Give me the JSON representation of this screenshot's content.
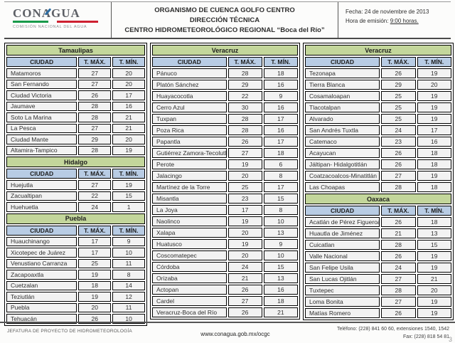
{
  "header": {
    "logo": {
      "title": "CONAGUA",
      "subtitle": "COMISIÓN NACIONAL DEL AGUA"
    },
    "title_lines": [
      "ORGANISMO DE CUENCA GOLFO CENTRO",
      "DIRECCIÓN TÉCNICA",
      "CENTRO HIDROMETEOROLÓGICO REGIONAL “Boca del Río”"
    ],
    "date_label": "Fecha: 24 de noviembre de 2013",
    "time_label": "Hora de emisión: ",
    "time_value": "9:00 horas."
  },
  "table_headers": {
    "city": "CIUDAD",
    "tmax": "T. MÁX.",
    "tmin": "T. MÍN."
  },
  "columns": [
    {
      "sections": [
        {
          "state": "Tamaulipas",
          "rows": [
            [
              "Matamoros",
              27,
              20
            ],
            [
              "San Fernando",
              27,
              20
            ],
            [
              "Ciudad Victoria",
              26,
              17
            ],
            [
              "Jaumave",
              28,
              16
            ],
            [
              "Soto La Marina",
              28,
              21
            ],
            [
              "La Pesca",
              27,
              21
            ],
            [
              "Ciudad Mante",
              29,
              20
            ],
            [
              "Altamira-Tampico",
              28,
              19
            ]
          ]
        },
        {
          "state": "Hidalgo",
          "rows": [
            [
              "Huejutla",
              27,
              19
            ],
            [
              "Zacualtipan",
              22,
              15
            ],
            [
              "Huehuetla",
              24,
              1
            ]
          ]
        },
        {
          "state": "Puebla",
          "rows": [
            [
              "Huauchinango",
              17,
              9
            ],
            [
              "Xicotepec de Juárez",
              17,
              10
            ],
            [
              "Venustiano Carranza",
              25,
              11
            ],
            [
              "Zacapoaxtla",
              19,
              8
            ],
            [
              "Cuetzalan",
              18,
              14
            ],
            [
              "Teziutlán",
              19,
              12
            ],
            [
              "Puebla",
              20,
              11
            ],
            [
              "Tehuacán",
              26,
              10
            ]
          ]
        }
      ]
    },
    {
      "sections": [
        {
          "state": "Veracruz",
          "rows": [
            [
              "Pánuco",
              28,
              18
            ],
            [
              "Platón Sánchez",
              29,
              16
            ],
            [
              "Huayacocotla",
              22,
              9
            ],
            [
              "Cerro Azul",
              30,
              16
            ],
            [
              "Tuxpan",
              28,
              17
            ],
            [
              "Poza Rica",
              28,
              16
            ],
            [
              "Papantla",
              26,
              17
            ],
            [
              "Gutiérrez Zamora-Tecolutla",
              27,
              18
            ],
            [
              "Perote",
              19,
              6
            ],
            [
              "Jalacingo",
              20,
              8
            ],
            [
              "Martínez de la Torre",
              25,
              17
            ],
            [
              "Misantla",
              23,
              15
            ],
            [
              "La Joya",
              17,
              8
            ],
            [
              "Naolinco",
              19,
              10
            ],
            [
              "Xalapa",
              20,
              13
            ],
            [
              "Huatusco",
              19,
              9
            ],
            [
              "Coscomatepec",
              20,
              10
            ],
            [
              "Córdoba",
              24,
              15
            ],
            [
              "Orizaba",
              21,
              13
            ],
            [
              "Actopan",
              26,
              16
            ],
            [
              "Cardel",
              27,
              18
            ],
            [
              "Veracruz-Boca del Río",
              26,
              21
            ]
          ]
        }
      ]
    },
    {
      "sections": [
        {
          "state": "Veracruz",
          "rows": [
            [
              "Tezonapa",
              26,
              19
            ],
            [
              "Tierra Blanca",
              29,
              20
            ],
            [
              "Cosamaloapan",
              25,
              19
            ],
            [
              "Tlacotalpan",
              25,
              19
            ],
            [
              "Alvarado",
              25,
              19
            ],
            [
              "San Andrés Tuxtla",
              24,
              17
            ],
            [
              "Catemaco",
              23,
              16
            ],
            [
              "Acayucan",
              26,
              18
            ],
            [
              "Jáltipan- Hidalgotitlán",
              26,
              18
            ],
            [
              "Coatzacoalcos-Minatitlán",
              27,
              19
            ],
            [
              "Las Choapas",
              28,
              18
            ]
          ]
        },
        {
          "state": "Oaxaca",
          "rows": [
            [
              "Acatlán de Pérez Figueroa",
              26,
              18
            ],
            [
              "Huautla  de Jiménez",
              21,
              13
            ],
            [
              "Cuicatlan",
              28,
              15
            ],
            [
              "Valle Nacional",
              26,
              19
            ],
            [
              "San Felipe Usila",
              24,
              19
            ],
            [
              "San Lucas Ojitlán",
              27,
              21
            ],
            [
              "Tuxtepec",
              28,
              20
            ],
            [
              "Loma Bonita",
              27,
              19
            ],
            [
              "Matías Romero",
              26,
              19
            ]
          ]
        }
      ]
    }
  ],
  "footer": {
    "left": "JEFATURA DE PROYECTO DE HIDROMETEOROLOGÍA",
    "center": "www.conagua.gob.mx/ocgc",
    "right_line1": "Teléfono: (228) 841 60 60, extensiones 1540, 1542",
    "right_line2": "Fax: (228) 818 54 81",
    "page_number": "3"
  },
  "colors": {
    "state_header_bg": "#c3d69b",
    "column_header_bg": "#b8cce4",
    "row_bg": "#f2f2f2",
    "logo_green": "#189a4a",
    "logo_red": "#ce2030",
    "logo_blue": "#2b6ca3"
  }
}
